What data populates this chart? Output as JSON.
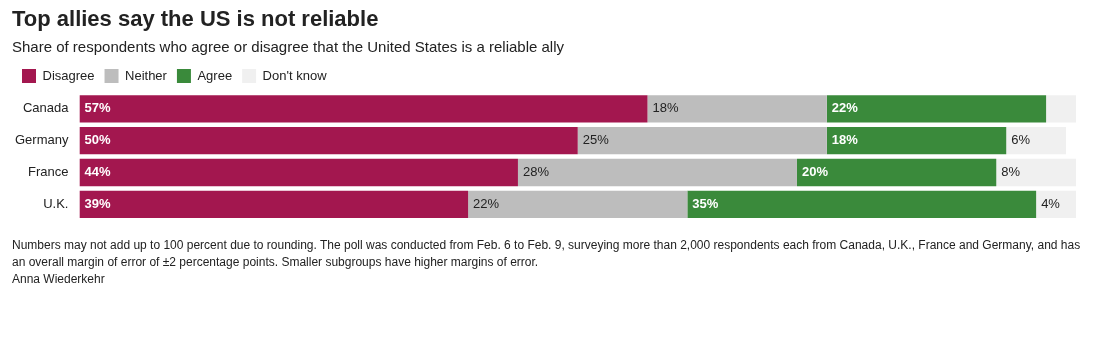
{
  "chart_data": {
    "type": "bar",
    "orientation": "horizontal",
    "stacked": true,
    "title": "Top allies say the US is not reliable",
    "subtitle": "Share of respondents who agree or disagree that the United States is a reliable ally",
    "categories": [
      "Canada",
      "Germany",
      "France",
      "U.K."
    ],
    "series": [
      {
        "name": "Disagree",
        "color": "#a3174f",
        "values": [
          57,
          50,
          44,
          39
        ],
        "value_labels": [
          "57%",
          "50%",
          "44%",
          "39%"
        ]
      },
      {
        "name": "Neither",
        "color": "#bdbdbd",
        "values": [
          18,
          25,
          28,
          22
        ],
        "value_labels": [
          "18%",
          "25%",
          "28%",
          "22%"
        ]
      },
      {
        "name": "Agree",
        "color": "#3a8a3b",
        "values": [
          22,
          18,
          20,
          35
        ],
        "value_labels": [
          "22%",
          "18%",
          "20%",
          "35%"
        ]
      },
      {
        "name": "Don't know",
        "color": "#f0f0f0",
        "values": [
          3,
          6,
          8,
          4
        ],
        "value_labels": [
          null,
          "6%",
          "8%",
          "4%"
        ]
      }
    ],
    "legend": "top left",
    "grid": false,
    "tick_labels": "y",
    "annotations": [
      "Numbers may not add up to 100 percent due to rounding. The poll was conducted from Feb. 6 to Feb. 9, surveying more than 2,000 respondents each from Canada, U.K., France and Germany, and has an overall margin of error of ±2 percentage points. Smaller subgroups have higher margins of error.",
      "Anna Wiederkehr"
    ]
  }
}
